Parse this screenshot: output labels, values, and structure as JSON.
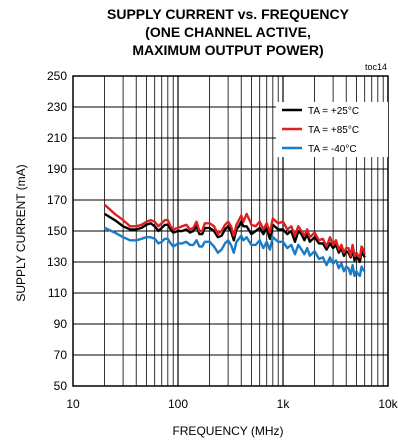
{
  "chart_data": {
    "type": "line",
    "title_lines": [
      "SUPPLY CURRENT vs. FREQUENCY",
      "(ONE CHANNEL ACTIVE,",
      "MAXIMUM OUTPUT POWER)"
    ],
    "tag": "toc14",
    "xlabel": "FREQUENCY (MHz)",
    "ylabel": "SUPPLY CURRENT (mA)",
    "x_scale": "log",
    "xlim": [
      10,
      10000
    ],
    "ylim": [
      50,
      250
    ],
    "x_ticks": [
      10,
      100,
      1000,
      10000
    ],
    "x_tick_labels": [
      "10",
      "100",
      "1k",
      "10k"
    ],
    "y_ticks": [
      50,
      70,
      90,
      110,
      130,
      150,
      170,
      190,
      210,
      230,
      250
    ],
    "y_tick_labels": [
      "50",
      "70",
      "90",
      "110",
      "130",
      "150",
      "170",
      "190",
      "210",
      "230",
      "250"
    ],
    "grid": true,
    "legend_position": "top-right",
    "series": [
      {
        "name": "TA = +25°C",
        "color": "#000000",
        "x": [
          20,
          25,
          30,
          35,
          40,
          45,
          50,
          55,
          60,
          65,
          70,
          75,
          80,
          85,
          90,
          100,
          110,
          120,
          130,
          140,
          150,
          160,
          170,
          180,
          190,
          200,
          220,
          240,
          260,
          280,
          300,
          320,
          340,
          360,
          380,
          400,
          420,
          450,
          480,
          500,
          550,
          600,
          650,
          700,
          750,
          800,
          900,
          1000,
          1100,
          1200,
          1300,
          1400,
          1500,
          1600,
          1700,
          1800,
          2000,
          2200,
          2400,
          2600,
          2800,
          3000,
          3200,
          3400,
          3600,
          3800,
          4000,
          4200,
          4400,
          4600,
          4800,
          5000,
          5200,
          5400,
          5600,
          5800,
          6000
        ],
        "values": [
          161,
          157,
          153,
          151,
          151,
          152,
          154,
          155,
          153,
          150,
          152,
          154,
          154,
          151,
          149,
          150,
          150,
          151,
          149,
          150,
          153,
          148,
          148,
          152,
          152,
          152,
          150,
          146,
          147,
          151,
          153,
          150,
          144,
          151,
          153,
          156,
          153,
          153,
          150,
          148,
          150,
          152,
          148,
          152,
          145,
          154,
          151,
          151,
          148,
          150,
          143,
          150,
          148,
          144,
          148,
          143,
          146,
          142,
          142,
          138,
          142,
          139,
          141,
          136,
          139,
          134,
          137,
          136,
          133,
          138,
          131,
          133,
          132,
          130,
          137,
          135,
          133
        ]
      },
      {
        "name": "TA = +85°C",
        "color": "#e02020",
        "x": [
          20,
          25,
          30,
          35,
          40,
          45,
          50,
          55,
          60,
          65,
          70,
          75,
          80,
          85,
          90,
          100,
          110,
          120,
          130,
          140,
          150,
          160,
          170,
          180,
          190,
          200,
          220,
          240,
          260,
          280,
          300,
          320,
          340,
          360,
          380,
          400,
          420,
          450,
          480,
          500,
          550,
          600,
          650,
          700,
          750,
          800,
          900,
          1000,
          1100,
          1200,
          1300,
          1400,
          1500,
          1600,
          1700,
          1800,
          2000,
          2200,
          2400,
          2600,
          2800,
          3000,
          3200,
          3400,
          3600,
          3800,
          4000,
          4200,
          4400,
          4600,
          4800,
          5000,
          5200,
          5400,
          5600,
          5800,
          6000
        ],
        "values": [
          167,
          161,
          157,
          153,
          153,
          154,
          156,
          157,
          156,
          153,
          155,
          157,
          157,
          153,
          151,
          152,
          153,
          154,
          151,
          152,
          156,
          150,
          150,
          155,
          155,
          155,
          153,
          148,
          150,
          154,
          156,
          153,
          147,
          154,
          157,
          160,
          156,
          161,
          157,
          154,
          153,
          156,
          151,
          155,
          149,
          158,
          155,
          156,
          151,
          153,
          147,
          153,
          150,
          147,
          151,
          146,
          149,
          144,
          145,
          140,
          146,
          141,
          144,
          138,
          141,
          136,
          139,
          139,
          134,
          141,
          134,
          136,
          134,
          133,
          140,
          138,
          135
        ]
      },
      {
        "name": "TA = -40°C",
        "color": "#1a7cc9",
        "x": [
          20,
          25,
          30,
          35,
          40,
          45,
          50,
          55,
          60,
          65,
          70,
          75,
          80,
          85,
          90,
          100,
          110,
          120,
          130,
          140,
          150,
          160,
          170,
          180,
          190,
          200,
          220,
          240,
          260,
          280,
          300,
          320,
          340,
          360,
          380,
          400,
          420,
          450,
          480,
          500,
          550,
          600,
          650,
          700,
          750,
          800,
          900,
          1000,
          1100,
          1200,
          1300,
          1400,
          1500,
          1600,
          1700,
          1800,
          2000,
          2200,
          2400,
          2600,
          2800,
          3000,
          3200,
          3400,
          3600,
          3800,
          4000,
          4200,
          4400,
          4600,
          4800,
          5000,
          5200,
          5400,
          5600,
          5800,
          6000
        ],
        "values": [
          152,
          149,
          146,
          144,
          144,
          145,
          146,
          146,
          145,
          142,
          143,
          145,
          145,
          142,
          140,
          142,
          142,
          143,
          141,
          141,
          144,
          140,
          140,
          143,
          143,
          143,
          140,
          136,
          138,
          142,
          144,
          141,
          136,
          143,
          145,
          147,
          144,
          146,
          143,
          141,
          141,
          144,
          139,
          143,
          138,
          146,
          143,
          143,
          139,
          141,
          135,
          141,
          138,
          135,
          139,
          134,
          137,
          132,
          133,
          128,
          133,
          129,
          131,
          126,
          129,
          124,
          127,
          126,
          122,
          128,
          121,
          124,
          122,
          121,
          127,
          125,
          124
        ]
      }
    ]
  }
}
